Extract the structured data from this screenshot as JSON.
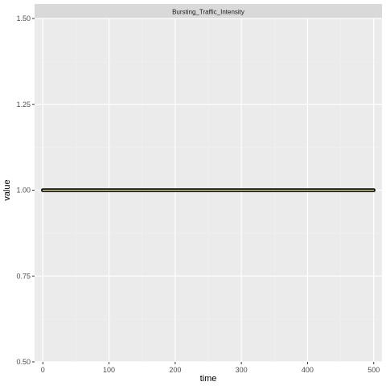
{
  "chart_data": {
    "type": "line",
    "facet_title": "Bursting_Traffic_Intensity",
    "xlabel": "time",
    "ylabel": "value",
    "xlim": [
      -12.5,
      512.5
    ],
    "ylim": [
      0.5,
      1.5
    ],
    "x_ticks": [
      0,
      100,
      200,
      300,
      400,
      500
    ],
    "x_tick_labels": [
      "0",
      "100",
      "200",
      "300",
      "400",
      "500"
    ],
    "y_ticks": [
      0.5,
      0.75,
      1.0,
      1.25,
      1.5
    ],
    "y_tick_labels": [
      "0.50",
      "0.75",
      "1.00",
      "1.25",
      "1.50"
    ],
    "grid": true,
    "series": [
      {
        "x": [
          0,
          500
        ],
        "y": [
          1.0,
          1.0
        ],
        "line_color": "#000000",
        "inner_color": "#f0e68c"
      }
    ]
  }
}
